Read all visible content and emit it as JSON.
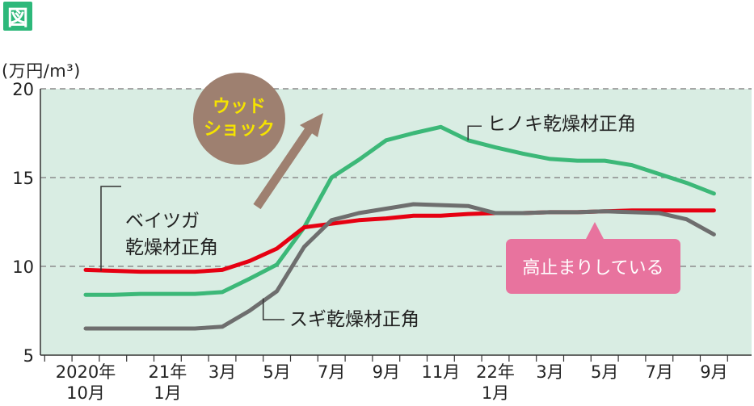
{
  "figure_tag": "図",
  "chart_data": {
    "type": "line",
    "unit_label": "(万円/m³)",
    "xlabel": "",
    "ylabel": "(万円/m³)",
    "ylim": [
      5,
      20
    ],
    "yticks": [
      "5",
      "10",
      "15",
      "20"
    ],
    "x_tick_labels": [
      {
        "line1": "2020年",
        "line2": "10月",
        "x": 0
      },
      {
        "line1": "21年",
        "line2": "1月",
        "x": 3
      },
      {
        "line1": "3月",
        "line2": "",
        "x": 5
      },
      {
        "line1": "5月",
        "line2": "",
        "x": 7
      },
      {
        "line1": "7月",
        "line2": "",
        "x": 9
      },
      {
        "line1": "9月",
        "line2": "",
        "x": 11
      },
      {
        "line1": "11月",
        "line2": "",
        "x": 13
      },
      {
        "line1": "22年",
        "line2": "1月",
        "x": 15
      },
      {
        "line1": "3月",
        "line2": "",
        "x": 17
      },
      {
        "line1": "5月",
        "line2": "",
        "x": 19
      },
      {
        "line1": "7月",
        "line2": "",
        "x": 21
      },
      {
        "line1": "9月",
        "line2": "",
        "x": 23
      }
    ],
    "grid": true,
    "series": [
      {
        "name": "ヒノキ乾燥材正角",
        "color": "#3cb878",
        "points": [
          [
            0,
            8.4
          ],
          [
            1,
            8.4
          ],
          [
            2,
            8.45
          ],
          [
            3,
            8.45
          ],
          [
            4,
            8.45
          ],
          [
            5,
            8.55
          ],
          [
            6,
            9.3
          ],
          [
            7,
            10.1
          ],
          [
            8,
            12.2
          ],
          [
            9,
            15.0
          ],
          [
            10,
            16.0
          ],
          [
            11,
            17.1
          ],
          [
            12,
            17.5
          ],
          [
            13,
            17.85
          ],
          [
            14,
            17.1
          ],
          [
            15,
            16.7
          ],
          [
            16,
            16.35
          ],
          [
            17,
            16.05
          ],
          [
            18,
            15.95
          ],
          [
            19,
            15.95
          ],
          [
            20,
            15.7
          ],
          [
            21,
            15.2
          ],
          [
            22,
            14.7
          ],
          [
            23,
            14.1
          ]
        ]
      },
      {
        "name": "ベイツガ\n乾燥材正角",
        "color": "#e60012",
        "points": [
          [
            0,
            9.8
          ],
          [
            1,
            9.75
          ],
          [
            2,
            9.7
          ],
          [
            3,
            9.7
          ],
          [
            4,
            9.7
          ],
          [
            5,
            9.8
          ],
          [
            6,
            10.3
          ],
          [
            7,
            11.0
          ],
          [
            8,
            12.2
          ],
          [
            9,
            12.4
          ],
          [
            10,
            12.6
          ],
          [
            11,
            12.7
          ],
          [
            12,
            12.85
          ],
          [
            13,
            12.85
          ],
          [
            14,
            12.95
          ],
          [
            15,
            13.0
          ],
          [
            16,
            13.0
          ],
          [
            17,
            13.05
          ],
          [
            18,
            13.05
          ],
          [
            19,
            13.1
          ],
          [
            20,
            13.15
          ],
          [
            21,
            13.15
          ],
          [
            22,
            13.15
          ],
          [
            23,
            13.15
          ]
        ]
      },
      {
        "name": "スギ乾燥材正角",
        "color": "#6e6e6e",
        "points": [
          [
            0,
            6.5
          ],
          [
            1,
            6.5
          ],
          [
            2,
            6.5
          ],
          [
            3,
            6.5
          ],
          [
            4,
            6.5
          ],
          [
            5,
            6.6
          ],
          [
            6,
            7.5
          ],
          [
            7,
            8.6
          ],
          [
            8,
            11.1
          ],
          [
            9,
            12.6
          ],
          [
            10,
            13.0
          ],
          [
            11,
            13.25
          ],
          [
            12,
            13.5
          ],
          [
            13,
            13.45
          ],
          [
            14,
            13.4
          ],
          [
            15,
            13.0
          ],
          [
            16,
            13.0
          ],
          [
            17,
            13.05
          ],
          [
            18,
            13.05
          ],
          [
            19,
            13.1
          ],
          [
            20,
            13.05
          ],
          [
            21,
            13.0
          ],
          [
            22,
            12.65
          ],
          [
            23,
            11.8
          ]
        ]
      }
    ],
    "annotations": {
      "wood_shock": "ウッド\nショック",
      "wood_shock_color": "#9e8070",
      "plateau": "高止まりしている",
      "plateau_color": "#e8739e"
    },
    "colors": {
      "plot_bg": "#d9ede3",
      "grid": "#8c8c8c",
      "axis": "#333333",
      "wood_shock_text": "#f5e300",
      "arrow": "#9e8070"
    }
  }
}
